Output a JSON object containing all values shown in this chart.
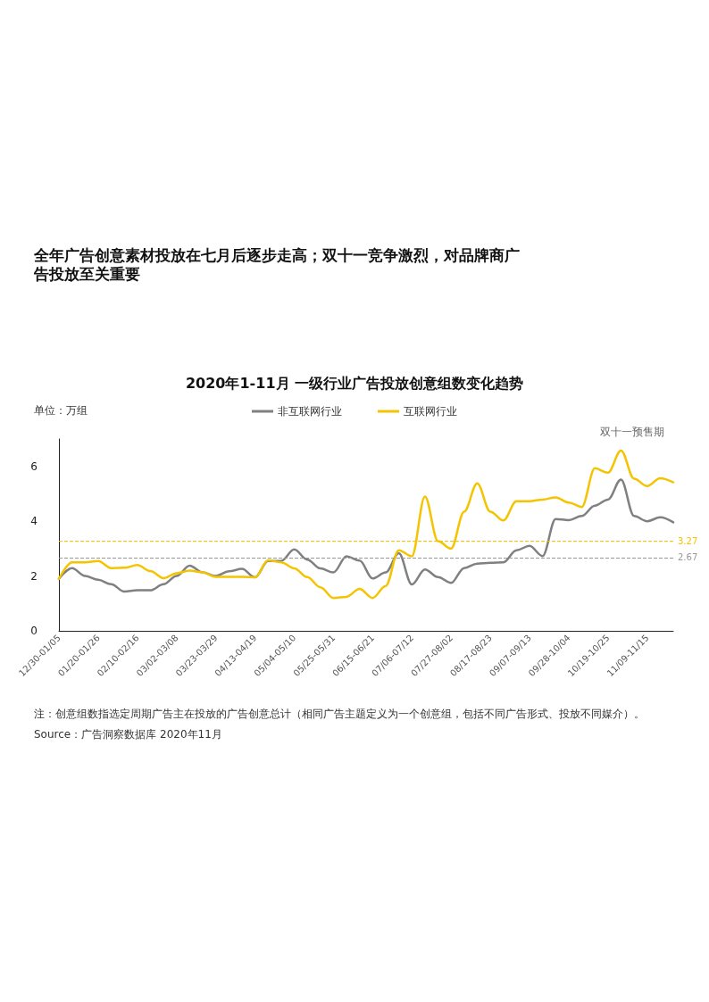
{
  "chart_data": {
    "type": "line",
    "title": "全年广告创意素材投放在七月后逐步走高；双十一竞争激烈，对品牌商广告投放至关重要",
    "subtitle": "2020年1-11月 一级行业广告投放创意组数变化趋势",
    "ylabel": "单位：万组",
    "categories": [
      "12/30-01/05",
      null,
      null,
      "01/20-01/26",
      null,
      null,
      "02/10-02/16",
      null,
      null,
      "03/02-03/08",
      null,
      null,
      "03/23-03/29",
      null,
      null,
      "04/13-04/19",
      null,
      null,
      "05/04-05/10",
      null,
      null,
      "05/25-05/31",
      null,
      null,
      "06/15-06/21",
      null,
      null,
      "07/06-07/12",
      null,
      null,
      "07/27-08/02",
      null,
      null,
      "08/17-08/23",
      null,
      null,
      "09/07-09/13",
      null,
      null,
      "09/28-10/04",
      null,
      null,
      "10/19-10/25",
      null,
      null,
      "11/09-11/15",
      null,
      null
    ],
    "series": [
      {
        "name": "非互联网行业",
        "color": "#808080",
        "values": [
          1.9,
          2.29,
          2.0,
          1.86,
          1.7,
          1.43,
          1.48,
          1.48,
          1.7,
          2.0,
          2.38,
          2.13,
          2.0,
          2.17,
          2.26,
          1.95,
          2.55,
          2.55,
          2.97,
          2.6,
          2.28,
          2.13,
          2.72,
          2.56,
          1.91,
          2.13,
          2.83,
          1.69,
          2.24,
          1.96,
          1.75,
          2.29,
          2.45,
          2.48,
          2.5,
          2.94,
          3.1,
          2.73,
          4.08,
          4.04,
          4.19,
          4.57,
          4.79,
          5.52,
          4.19,
          4.0,
          4.14,
          3.96
        ]
      },
      {
        "name": "互联网行业",
        "color": "#f5c400",
        "values": [
          1.9,
          2.5,
          2.5,
          2.55,
          2.29,
          2.3,
          2.4,
          2.18,
          1.92,
          2.1,
          2.2,
          2.13,
          1.97,
          1.97,
          1.97,
          1.95,
          2.57,
          2.5,
          2.28,
          1.96,
          1.59,
          1.2,
          1.24,
          1.53,
          1.2,
          1.64,
          2.94,
          2.72,
          4.9,
          3.27,
          3.0,
          4.35,
          5.38,
          4.35,
          4.03,
          4.73,
          4.73,
          4.79,
          4.87,
          4.68,
          4.52,
          5.93,
          5.77,
          6.58,
          5.55,
          5.28,
          5.57,
          5.42
        ]
      }
    ],
    "ylim": [
      0,
      7
    ],
    "yticks": [
      0,
      2,
      4,
      6
    ],
    "grid": false,
    "legend": "top",
    "marker": "none",
    "line_style": "solid",
    "ref_lines": [
      {
        "axis": "y",
        "value": 3.27,
        "label": "3.27",
        "color": "#f5c400",
        "line_style": "dashed"
      },
      {
        "axis": "y",
        "value": 2.67,
        "label": "2.67",
        "color": "#999999",
        "line_style": "dashed"
      }
    ],
    "annotations": [
      "双十一预售期",
      "注：创意组数指选定周期广告主在投放的广告创意总计（相同广告主题定义为一个创意组，包括不同广告形式、投放不同媒介）。",
      "Source：广告洞察数据库 2020年11月"
    ]
  }
}
